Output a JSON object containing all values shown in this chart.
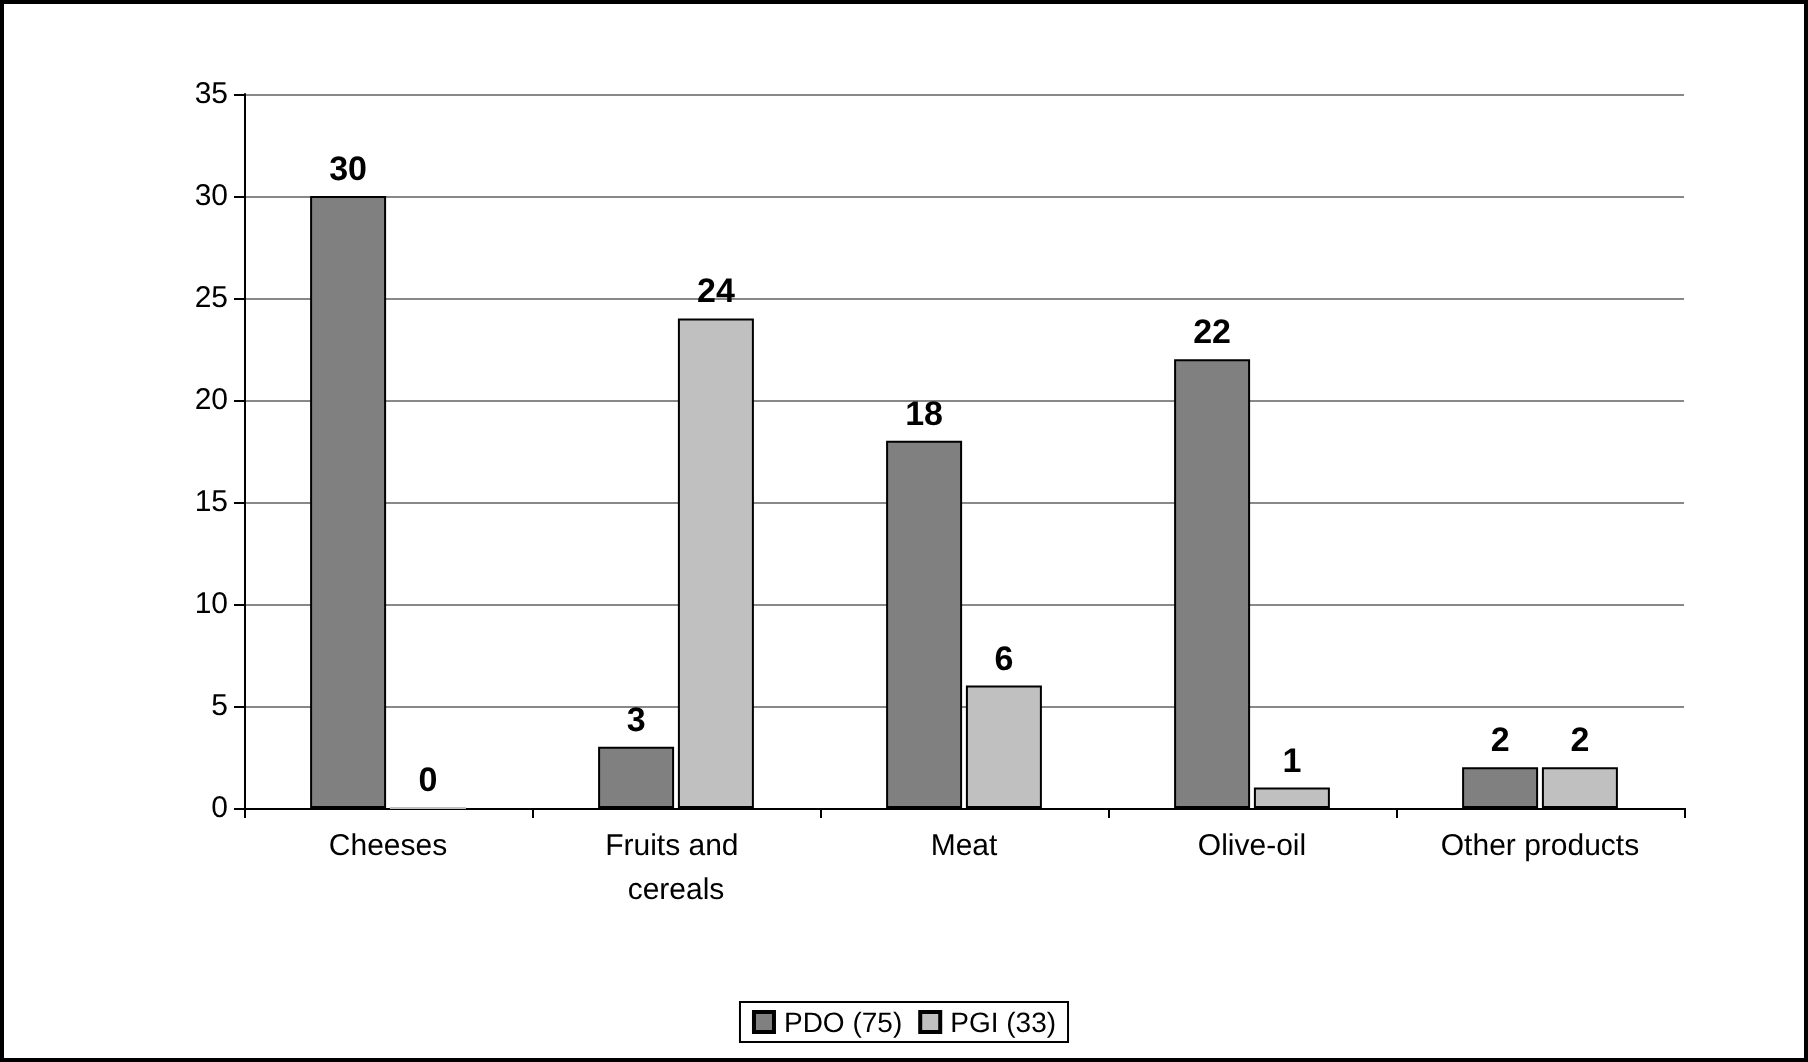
{
  "chart_data": {
    "type": "bar",
    "categories": [
      "Cheeses",
      "Fruits and cereals",
      "Meat",
      "Olive-oil",
      "Other products"
    ],
    "series": [
      {
        "name": "PDO (75)",
        "color": "#808080",
        "values": [
          30,
          3,
          18,
          22,
          2
        ]
      },
      {
        "name": "PGI (33)",
        "color": "#c0c0c0",
        "values": [
          0,
          24,
          6,
          1,
          2
        ]
      }
    ],
    "ylim": [
      0,
      35
    ],
    "yticks": [
      0,
      5,
      10,
      15,
      20,
      25,
      30,
      35
    ],
    "grid": "y",
    "legend": "bottom",
    "data_labels": true
  }
}
